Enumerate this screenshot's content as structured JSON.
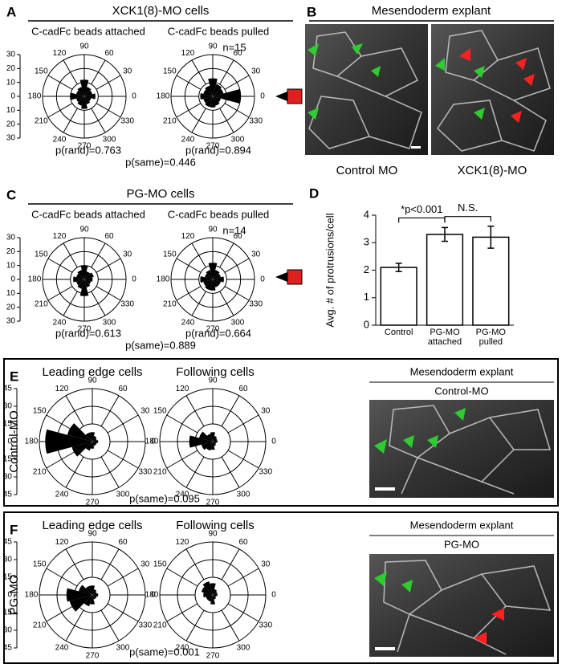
{
  "angle_labels": [
    0,
    30,
    60,
    90,
    120,
    150,
    180,
    210,
    240,
    270,
    300,
    330
  ],
  "panels": {
    "A": {
      "label": "A",
      "title": "XCK1(8)-MO cells",
      "n": "n=15",
      "p_same": "p(same)=0.446",
      "rlim": [
        0,
        30
      ],
      "rticks": [
        30,
        20,
        10,
        0,
        10,
        20,
        30
      ],
      "roses": [
        {
          "subtitle": "C-cadFc beads attached",
          "p_rand": "p(rand)=0.763",
          "values": [
            8,
            6,
            7,
            12,
            7,
            6,
            10,
            6,
            7,
            9,
            6,
            5
          ]
        },
        {
          "subtitle": "C-cadFc beads pulled",
          "p_rand": "p(rand)=0.894",
          "values": [
            20,
            8,
            9,
            13,
            8,
            7,
            9,
            7,
            8,
            8,
            7,
            6
          ]
        }
      ]
    },
    "B": {
      "label": "B",
      "title": "Mesendoderm explant",
      "images": [
        "Control MO",
        "XCK1(8)-MO"
      ]
    },
    "C": {
      "label": "C",
      "title": "PG-MO cells",
      "n": "n=14",
      "p_same": "p(same)=0.889",
      "rlim": [
        0,
        30
      ],
      "rticks": [
        30,
        20,
        10,
        0,
        10,
        20,
        30
      ],
      "roses": [
        {
          "subtitle": "C-cadFc beads attached",
          "p_rand": "p(rand)=0.613",
          "values": [
            6,
            7,
            6,
            10,
            7,
            6,
            8,
            6,
            7,
            12,
            6,
            5
          ]
        },
        {
          "subtitle": "C-cadFc beads pulled",
          "p_rand": "p(rand)=0.664",
          "values": [
            8,
            6,
            7,
            12,
            7,
            6,
            9,
            7,
            8,
            8,
            6,
            6
          ]
        }
      ]
    },
    "E": {
      "label": "E",
      "row_label": "Control-MO",
      "p_same": "p(same)=0.095",
      "rlim": [
        0,
        45
      ],
      "rticks": [
        45,
        30,
        15,
        0,
        15,
        30,
        45
      ],
      "roses": [
        {
          "subtitle": "Leading edge cells",
          "values": [
            5,
            4,
            5,
            8,
            8,
            22,
            40,
            18,
            8,
            6,
            4,
            4
          ]
        },
        {
          "subtitle": "Following cells",
          "values": [
            4,
            4,
            5,
            8,
            7,
            12,
            20,
            10,
            8,
            7,
            4,
            3
          ]
        }
      ],
      "image_title": "Mesendoderm explant",
      "image_label": "Control-MO"
    },
    "F": {
      "label": "F",
      "row_label": "PG-MO",
      "p_same": "p(same)=0.001",
      "rlim": [
        0,
        45
      ],
      "rticks": [
        45,
        30,
        15,
        0,
        15,
        30,
        45
      ],
      "roses": [
        {
          "subtitle": "Leading edge cells",
          "values": [
            5,
            4,
            5,
            8,
            8,
            12,
            22,
            20,
            10,
            8,
            4,
            4
          ]
        },
        {
          "subtitle": "Following cells",
          "values": [
            4,
            4,
            5,
            10,
            12,
            10,
            8,
            6,
            6,
            8,
            4,
            3
          ]
        }
      ],
      "image_title": "Mesendoderm explant",
      "image_label": "PG-MO"
    }
  },
  "chart_data": {
    "type": "bar",
    "label": "D",
    "ylabel": "Avg. # of protrusions/cell",
    "categories": [
      "Control",
      "PG-MO attached",
      "PG-MO pulled"
    ],
    "values": [
      2.1,
      3.3,
      3.2
    ],
    "errors": [
      0.15,
      0.25,
      0.4
    ],
    "color": "#ffffff",
    "ylim": [
      0,
      4
    ],
    "yticks": [
      0,
      1,
      2,
      3,
      4
    ],
    "annotations": [
      "*p<0.001",
      "N.S."
    ]
  }
}
